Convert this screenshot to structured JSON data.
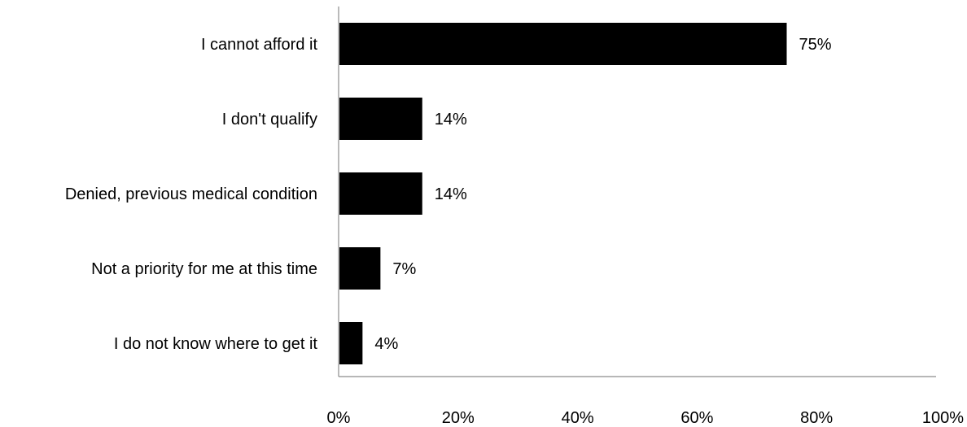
{
  "chart_data": {
    "type": "bar",
    "orientation": "horizontal",
    "categories": [
      "I cannot afford it",
      "I don't qualify",
      "Denied, previous medical condition",
      "Not a priority for me at this time",
      "I do not know where to get it"
    ],
    "values": [
      75,
      14,
      14,
      7,
      4
    ],
    "value_labels": [
      "75%",
      "14%",
      "14%",
      "7%",
      "4%"
    ],
    "xlim": [
      0,
      100
    ],
    "x_ticks": [
      0,
      20,
      40,
      60,
      80,
      100
    ],
    "x_tick_labels": [
      "0%",
      "20%",
      "40%",
      "60%",
      "80%",
      "100%"
    ],
    "grid": false,
    "legend": "none",
    "bar_color": "#000000"
  }
}
